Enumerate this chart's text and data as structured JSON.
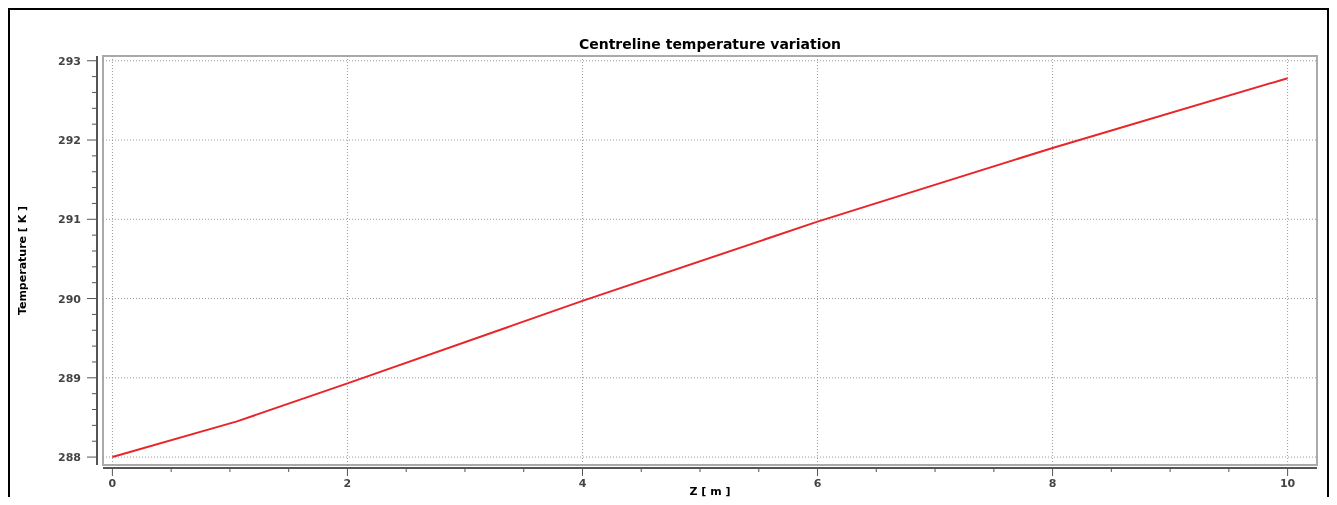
{
  "chart_data": {
    "type": "line",
    "title": "Centreline temperature variation",
    "xlabel": "Z [ m ]",
    "ylabel": "Temperature [ K ]",
    "x": [
      0,
      1.06,
      2,
      4,
      6,
      8,
      10
    ],
    "series": [
      {
        "color": "#e8262a",
        "values": [
          288,
          288.45,
          288.93,
          289.97,
          290.97,
          291.9,
          292.78
        ]
      }
    ],
    "xlim": [
      -0.08,
      10.25
    ],
    "ylim": [
      287.9,
      293.06
    ],
    "xticks": [
      0,
      {
        "value": 0.5,
        "label": null
      },
      {
        "value": 1,
        "label": null
      },
      {
        "value": 1.5,
        "label": null
      },
      2,
      {
        "value": 2.5,
        "label": null
      },
      {
        "value": 3,
        "label": null
      },
      {
        "value": 3.5,
        "label": null
      },
      4,
      {
        "value": 4.5,
        "label": null
      },
      {
        "value": 5,
        "label": null
      },
      {
        "value": 5.5,
        "label": null
      },
      6,
      {
        "value": 6.5,
        "label": null
      },
      {
        "value": 7,
        "label": null
      },
      {
        "value": 7.5,
        "label": null
      },
      8,
      {
        "value": 8.5,
        "label": null
      },
      {
        "value": 9,
        "label": null
      },
      {
        "value": 9.5,
        "label": null
      },
      10
    ],
    "yticks": [
      288,
      {
        "value": 288.2,
        "label": null
      },
      {
        "value": 288.4,
        "label": null
      },
      {
        "value": 288.6,
        "label": null
      },
      {
        "value": 288.8,
        "label": null
      },
      289,
      {
        "value": 289.2,
        "label": null
      },
      {
        "value": 289.4,
        "label": null
      },
      {
        "value": 289.6,
        "label": null
      },
      {
        "value": 289.8,
        "label": null
      },
      290,
      {
        "value": 290.2,
        "label": null
      },
      {
        "value": 290.4,
        "label": null
      },
      {
        "value": 290.6,
        "label": null
      },
      {
        "value": 290.8,
        "label": null
      },
      291,
      {
        "value": 291.2,
        "label": null
      },
      {
        "value": 291.4,
        "label": null
      },
      {
        "value": 291.6,
        "label": null
      },
      {
        "value": 291.8,
        "label": null
      },
      292,
      {
        "value": 292.2,
        "label": null
      },
      {
        "value": 292.4,
        "label": null
      },
      {
        "value": 292.6,
        "label": null
      },
      {
        "value": 292.8,
        "label": null
      },
      293
    ],
    "grid": true,
    "marker": "none",
    "line_style": "solid"
  }
}
